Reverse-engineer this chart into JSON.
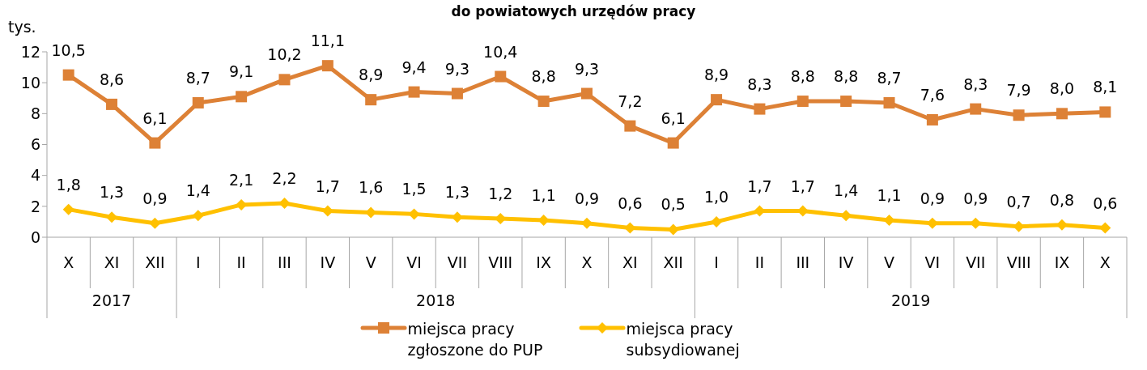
{
  "chart_data": {
    "type": "line",
    "title": "do powiatowych urzędów pracy",
    "ylabel": "tys.",
    "categories": [
      "X",
      "XI",
      "XII",
      "I",
      "II",
      "III",
      "IV",
      "V",
      "VI",
      "VII",
      "VIII",
      "IX",
      "X",
      "XI",
      "XII",
      "I",
      "II",
      "III",
      "IV",
      "V",
      "VI",
      "VII",
      "VIII",
      "IX",
      "X"
    ],
    "annotations": [
      "2017",
      "2018",
      "2019"
    ],
    "series": [
      {
        "name": "miejsca pracy zgłoszone do PUP",
        "color": "#dd8136",
        "marker": "square",
        "values": [
          10.5,
          8.6,
          6.1,
          8.7,
          9.1,
          10.2,
          11.1,
          8.9,
          9.4,
          9.3,
          10.4,
          8.8,
          9.3,
          7.2,
          6.1,
          8.9,
          8.3,
          8.8,
          8.8,
          8.7,
          7.6,
          8.3,
          7.9,
          8.0,
          8.1
        ],
        "value_labels": [
          "10,5",
          "8,6",
          "6,1",
          "8,7",
          "9,1",
          "10,2",
          "11,1",
          "8,9",
          "9,4",
          "9,3",
          "10,4",
          "8,8",
          "9,3",
          "7,2",
          "6,1",
          "8,9",
          "8,3",
          "8,8",
          "8,8",
          "8,7",
          "7,6",
          "8,3",
          "7,9",
          "8,0",
          "8,1"
        ]
      },
      {
        "name": "miejsca pracy subsydiowanej",
        "color": "#ffc000",
        "marker": "diamond",
        "values": [
          1.8,
          1.3,
          0.9,
          1.4,
          2.1,
          2.2,
          1.7,
          1.6,
          1.5,
          1.3,
          1.2,
          1.1,
          0.9,
          0.6,
          0.5,
          1.0,
          1.7,
          1.7,
          1.4,
          1.1,
          0.9,
          0.9,
          0.7,
          0.8,
          0.6
        ],
        "value_labels": [
          "1,8",
          "1,3",
          "0,9",
          "1,4",
          "2,1",
          "2,2",
          "1,7",
          "1,6",
          "1,5",
          "1,3",
          "1,2",
          "1,1",
          "0,9",
          "0,6",
          "0,5",
          "1,0",
          "1,7",
          "1,7",
          "1,4",
          "1,1",
          "0,9",
          "0,9",
          "0,7",
          "0,8",
          "0,6"
        ]
      }
    ],
    "ylim": [
      0,
      12
    ],
    "yticks": [
      0,
      2,
      4,
      6,
      8,
      10,
      12
    ],
    "legend": "bottom"
  }
}
